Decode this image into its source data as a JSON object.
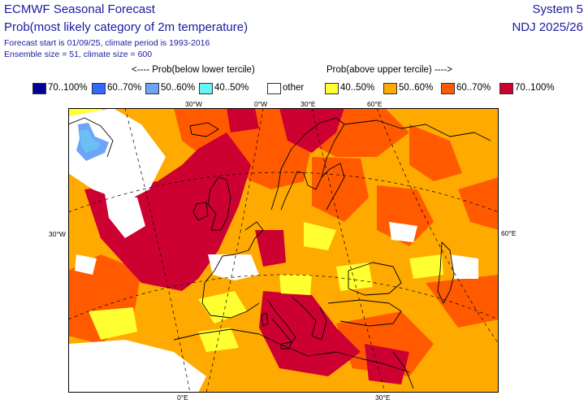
{
  "header": {
    "title": "ECMWF Seasonal Forecast",
    "subtitle": "Prob(most likely category of 2m temperature)",
    "line1": "Forecast start is 01/09/25, climate period is 1993-2016",
    "line2": "Ensemble size = 51, climate size = 600",
    "system": "System 5",
    "period": "NDJ 2025/26"
  },
  "legend": {
    "below_caption": "<---- Prob(below lower tercile)",
    "above_caption": "Prob(above upper tercile) ---->",
    "items": [
      {
        "label": "70..100%",
        "color": "#000096"
      },
      {
        "label": "60..70%",
        "color": "#3268ff"
      },
      {
        "label": "50..60%",
        "color": "#6ea4f5"
      },
      {
        "label": "40..50%",
        "color": "#64f5f5"
      },
      {
        "label": "other",
        "color": "#ffffff"
      },
      {
        "label": "40..50%",
        "color": "#ffff32"
      },
      {
        "label": "50..60%",
        "color": "#ffaa00"
      },
      {
        "label": "60..70%",
        "color": "#ff5a00"
      },
      {
        "label": "70..100%",
        "color": "#cd0032"
      }
    ]
  },
  "map": {
    "top_ticks": [
      "30°W",
      "0°W",
      "30°E",
      "60°E"
    ],
    "left_tick": "30°W",
    "right_tick": "60°E",
    "bottom_ticks": [
      "0°E",
      "30°E"
    ]
  }
}
